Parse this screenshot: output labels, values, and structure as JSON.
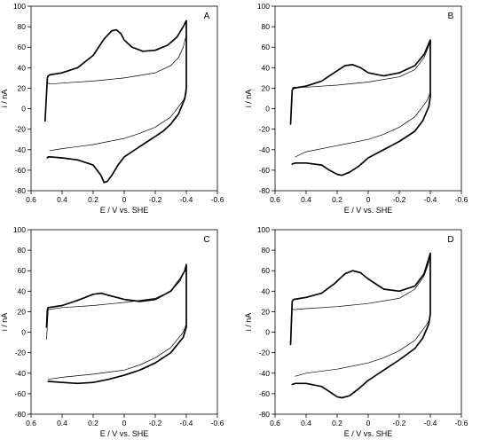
{
  "chart_data": [
    {
      "type": "line",
      "panel_label": "A",
      "xlabel": "E / V vs. SHE",
      "ylabel": "i / nA",
      "xlim": [
        0.6,
        -0.6
      ],
      "ylim": [
        -80,
        100
      ],
      "xticks": [
        0.6,
        0.4,
        0.2,
        0,
        -0.2,
        -0.4,
        -0.6
      ],
      "xtick_labels": [
        "0.6",
        "0.4",
        "0.2",
        "0",
        "-0.2",
        "-0.4",
        "-0.6"
      ],
      "yticks": [
        -80,
        -60,
        -40,
        -20,
        0,
        20,
        40,
        60,
        80,
        100
      ],
      "ytick_labels": [
        "-80",
        "-60",
        "-40",
        "-20",
        "0",
        "20",
        "40",
        "60",
        "80",
        "100"
      ],
      "grid": false,
      "series": [
        {
          "style": "bold",
          "x": [
            0.51,
            0.495,
            0.49,
            0.48,
            0.4,
            0.3,
            0.2,
            0.13,
            0.08,
            0.05,
            0.02,
            0.0,
            -0.05,
            -0.12,
            -0.2,
            -0.28,
            -0.34,
            -0.38,
            -0.4,
            -0.4,
            -0.39,
            -0.35,
            -0.3,
            -0.25,
            -0.2,
            -0.15,
            -0.1,
            -0.05,
            0.0,
            0.04,
            0.08,
            0.11,
            0.13,
            0.15,
            0.2,
            0.3,
            0.4,
            0.48,
            0.49,
            0.495
          ],
          "y": [
            -12,
            30,
            32,
            33,
            35,
            40,
            52,
            68,
            76,
            77,
            73,
            67,
            60,
            56,
            57,
            62,
            70,
            80,
            86,
            20,
            10,
            -5,
            -15,
            -22,
            -27,
            -32,
            -37,
            -42,
            -47,
            -55,
            -65,
            -71,
            -72,
            -65,
            -55,
            -50,
            -48,
            -47,
            -47,
            -48
          ]
        },
        {
          "style": "thin",
          "x": [
            0.49,
            0.48,
            0.4,
            0.2,
            0.0,
            -0.2,
            -0.3,
            -0.35,
            -0.38,
            -0.4,
            -0.4,
            -0.38,
            -0.3,
            -0.2,
            -0.1,
            0.0,
            0.1,
            0.2,
            0.3,
            0.4,
            0.48
          ],
          "y": [
            25,
            24,
            25,
            27,
            30,
            35,
            42,
            50,
            60,
            72,
            15,
            8,
            -8,
            -18,
            -24,
            -29,
            -32,
            -35,
            -37,
            -39,
            -41
          ]
        }
      ]
    },
    {
      "type": "line",
      "panel_label": "B",
      "xlabel": "E / V vs. SHE",
      "ylabel": "i / nA",
      "xlim": [
        0.6,
        -0.6
      ],
      "ylim": [
        -80,
        100
      ],
      "xticks": [
        0.6,
        0.4,
        0.2,
        0,
        -0.2,
        -0.4,
        -0.6
      ],
      "xtick_labels": [
        "0.6",
        "0.4",
        "0.2",
        "0",
        "-0.2",
        "-0.4",
        "-0.6"
      ],
      "yticks": [
        -80,
        -60,
        -40,
        -20,
        0,
        20,
        40,
        60,
        80,
        100
      ],
      "ytick_labels": [
        "-80",
        "-60",
        "-40",
        "-20",
        "0",
        "20",
        "40",
        "60",
        "80",
        "100"
      ],
      "grid": false,
      "series": [
        {
          "style": "bold",
          "x": [
            0.5,
            0.49,
            0.48,
            0.4,
            0.3,
            0.22,
            0.15,
            0.1,
            0.05,
            0.0,
            -0.1,
            -0.2,
            -0.3,
            -0.36,
            -0.4,
            -0.4,
            -0.39,
            -0.35,
            -0.3,
            -0.2,
            -0.1,
            0.0,
            0.06,
            0.12,
            0.17,
            0.2,
            0.25,
            0.3,
            0.4,
            0.47,
            0.49
          ],
          "y": [
            -15,
            18,
            20,
            22,
            27,
            35,
            42,
            43,
            40,
            35,
            32,
            35,
            42,
            53,
            67,
            12,
            2,
            -12,
            -22,
            -32,
            -40,
            -48,
            -56,
            -62,
            -65,
            -64,
            -60,
            -55,
            -53,
            -53,
            -54
          ]
        },
        {
          "style": "thin",
          "x": [
            0.49,
            0.48,
            0.4,
            0.2,
            0.0,
            -0.2,
            -0.3,
            -0.36,
            -0.4,
            -0.4,
            -0.38,
            -0.3,
            -0.2,
            -0.1,
            0.0,
            0.2,
            0.4,
            0.47
          ],
          "y": [
            20,
            21,
            21,
            23,
            26,
            31,
            38,
            50,
            65,
            16,
            8,
            -8,
            -18,
            -25,
            -30,
            -36,
            -42,
            -47
          ]
        }
      ]
    },
    {
      "type": "line",
      "panel_label": "C",
      "xlabel": "E / V vs. SHE",
      "ylabel": "i / nA",
      "xlim": [
        0.6,
        -0.6
      ],
      "ylim": [
        -80,
        100
      ],
      "xticks": [
        0.6,
        0.4,
        0.2,
        0,
        -0.2,
        -0.4,
        -0.6
      ],
      "xtick_labels": [
        "0.6",
        "0.4",
        "0.2",
        "0",
        "-0.2",
        "-0.4",
        "-0.6"
      ],
      "yticks": [
        -80,
        -60,
        -40,
        -20,
        0,
        20,
        40,
        60,
        80,
        100
      ],
      "ytick_labels": [
        "-80",
        "-60",
        "-40",
        "-20",
        "0",
        "20",
        "40",
        "60",
        "80",
        "100"
      ],
      "grid": false,
      "series": [
        {
          "style": "bold",
          "x": [
            0.5,
            0.495,
            0.49,
            0.4,
            0.3,
            0.2,
            0.15,
            0.1,
            0.0,
            -0.1,
            -0.2,
            -0.3,
            -0.36,
            -0.39,
            -0.4,
            -0.4,
            -0.38,
            -0.3,
            -0.2,
            -0.1,
            0.0,
            0.1,
            0.2,
            0.3,
            0.4,
            0.49
          ],
          "y": [
            5,
            22,
            24,
            26,
            31,
            37,
            38,
            36,
            32,
            30,
            32,
            40,
            52,
            60,
            66,
            5,
            -5,
            -20,
            -30,
            -37,
            -42,
            -46,
            -49,
            -50,
            -49,
            -48
          ]
        },
        {
          "style": "thin",
          "x": [
            0.5,
            0.49,
            0.4,
            0.2,
            0.0,
            -0.2,
            -0.3,
            -0.36,
            -0.4,
            -0.4,
            -0.38,
            -0.3,
            -0.2,
            -0.1,
            0.0,
            0.2,
            0.4,
            0.49
          ],
          "y": [
            -7,
            22,
            24,
            26,
            29,
            33,
            40,
            50,
            64,
            8,
            0,
            -15,
            -25,
            -32,
            -37,
            -41,
            -44,
            -46
          ]
        }
      ]
    },
    {
      "type": "line",
      "panel_label": "D",
      "xlabel": "E / V vs. SHE",
      "ylabel": "i / nA",
      "xlim": [
        0.6,
        -0.6
      ],
      "ylim": [
        -80,
        100
      ],
      "xticks": [
        0.6,
        0.4,
        0.2,
        0,
        -0.2,
        -0.4,
        -0.6
      ],
      "xtick_labels": [
        "0.6",
        "0.4",
        "0.2",
        "0",
        "-0.2",
        "-0.4",
        "-0.6"
      ],
      "yticks": [
        -80,
        -60,
        -40,
        -20,
        0,
        20,
        40,
        60,
        80,
        100
      ],
      "ytick_labels": [
        "-80",
        "-60",
        "-40",
        "-20",
        "0",
        "20",
        "40",
        "60",
        "80",
        "100"
      ],
      "grid": false,
      "series": [
        {
          "style": "bold",
          "x": [
            0.5,
            0.49,
            0.48,
            0.4,
            0.3,
            0.22,
            0.15,
            0.1,
            0.05,
            0.0,
            -0.1,
            -0.2,
            -0.3,
            -0.36,
            -0.4,
            -0.4,
            -0.39,
            -0.35,
            -0.3,
            -0.2,
            -0.1,
            0.0,
            0.06,
            0.12,
            0.17,
            0.2,
            0.25,
            0.3,
            0.4,
            0.47,
            0.49
          ],
          "y": [
            -12,
            30,
            32,
            34,
            38,
            47,
            57,
            60,
            58,
            52,
            42,
            40,
            45,
            57,
            77,
            18,
            8,
            -6,
            -16,
            -27,
            -37,
            -47,
            -55,
            -62,
            -64,
            -63,
            -58,
            -53,
            -50,
            -50,
            -51
          ]
        },
        {
          "style": "thin",
          "x": [
            0.49,
            0.48,
            0.4,
            0.2,
            0.0,
            -0.2,
            -0.3,
            -0.36,
            -0.4,
            -0.4,
            -0.38,
            -0.3,
            -0.2,
            -0.1,
            0.0,
            0.2,
            0.4,
            0.47
          ],
          "y": [
            23,
            22,
            23,
            25,
            28,
            33,
            42,
            55,
            72,
            15,
            8,
            -8,
            -18,
            -25,
            -30,
            -36,
            -40,
            -43
          ]
        }
      ]
    }
  ]
}
